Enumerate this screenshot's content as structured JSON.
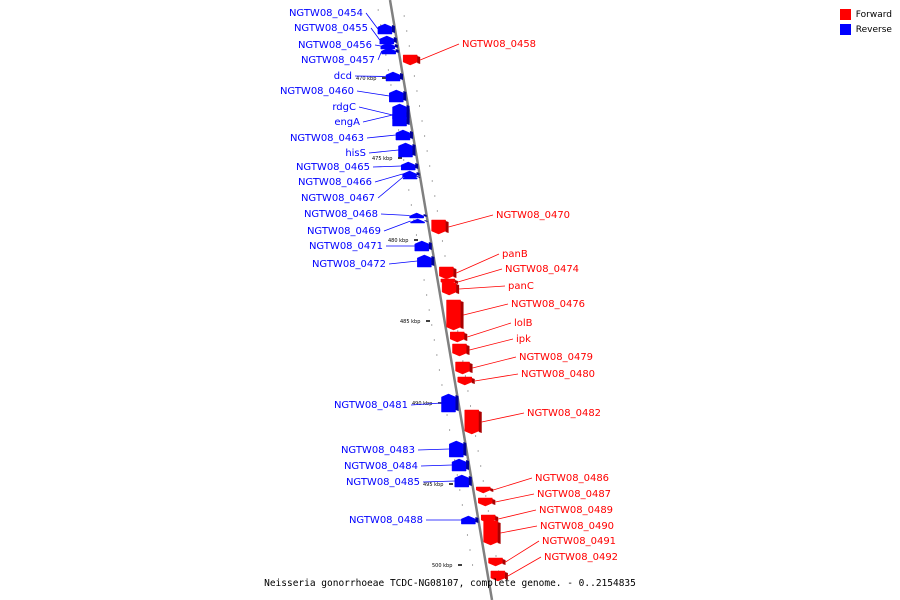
{
  "caption": "Neisseria gonorrhoeae TCDC-NG08107, complete genome. - 0..2154835",
  "legend": [
    {
      "label": "Forward",
      "color": "#ff0000"
    },
    {
      "label": "Reverse",
      "color": "#0000ff"
    }
  ],
  "colors": {
    "forward": "#ff0000",
    "reverse": "#0000ff",
    "backbone": "#808080"
  },
  "kbp_ticks": [
    "470 kbp",
    "475 kbp",
    "480 kbp",
    "485 kbp",
    "490 kbp",
    "495 kbp",
    "500 kbp"
  ],
  "genes": [
    {
      "name": "NGTW08_0454",
      "strand": "reverse"
    },
    {
      "name": "NGTW08_0455",
      "strand": "reverse"
    },
    {
      "name": "NGTW08_0456",
      "strand": "reverse"
    },
    {
      "name": "NGTW08_0457",
      "strand": "reverse"
    },
    {
      "name": "NGTW08_0458",
      "strand": "forward"
    },
    {
      "name": "dcd",
      "strand": "reverse"
    },
    {
      "name": "NGTW08_0460",
      "strand": "reverse"
    },
    {
      "name": "rdgC",
      "strand": "reverse"
    },
    {
      "name": "engA",
      "strand": "reverse"
    },
    {
      "name": "NGTW08_0463",
      "strand": "reverse"
    },
    {
      "name": "hisS",
      "strand": "reverse"
    },
    {
      "name": "NGTW08_0465",
      "strand": "reverse"
    },
    {
      "name": "NGTW08_0466",
      "strand": "reverse"
    },
    {
      "name": "NGTW08_0467",
      "strand": "reverse"
    },
    {
      "name": "NGTW08_0468",
      "strand": "reverse"
    },
    {
      "name": "NGTW08_0469",
      "strand": "reverse"
    },
    {
      "name": "NGTW08_0470",
      "strand": "forward"
    },
    {
      "name": "NGTW08_0471",
      "strand": "reverse"
    },
    {
      "name": "NGTW08_0472",
      "strand": "reverse"
    },
    {
      "name": "panB",
      "strand": "forward"
    },
    {
      "name": "NGTW08_0474",
      "strand": "forward"
    },
    {
      "name": "panC",
      "strand": "forward"
    },
    {
      "name": "NGTW08_0476",
      "strand": "forward"
    },
    {
      "name": "lolB",
      "strand": "forward"
    },
    {
      "name": "ipk",
      "strand": "forward"
    },
    {
      "name": "NGTW08_0479",
      "strand": "forward"
    },
    {
      "name": "NGTW08_0480",
      "strand": "forward"
    },
    {
      "name": "NGTW08_0481",
      "strand": "reverse"
    },
    {
      "name": "NGTW08_0482",
      "strand": "forward"
    },
    {
      "name": "NGTW08_0483",
      "strand": "reverse"
    },
    {
      "name": "NGTW08_0484",
      "strand": "reverse"
    },
    {
      "name": "NGTW08_0485",
      "strand": "reverse"
    },
    {
      "name": "NGTW08_0486",
      "strand": "forward"
    },
    {
      "name": "NGTW08_0487",
      "strand": "forward"
    },
    {
      "name": "NGTW08_0488",
      "strand": "reverse"
    },
    {
      "name": "NGTW08_0489",
      "strand": "forward"
    },
    {
      "name": "NGTW08_0490",
      "strand": "forward"
    },
    {
      "name": "NGTW08_0491",
      "strand": "forward"
    },
    {
      "name": "NGTW08_0492",
      "strand": "forward"
    }
  ]
}
